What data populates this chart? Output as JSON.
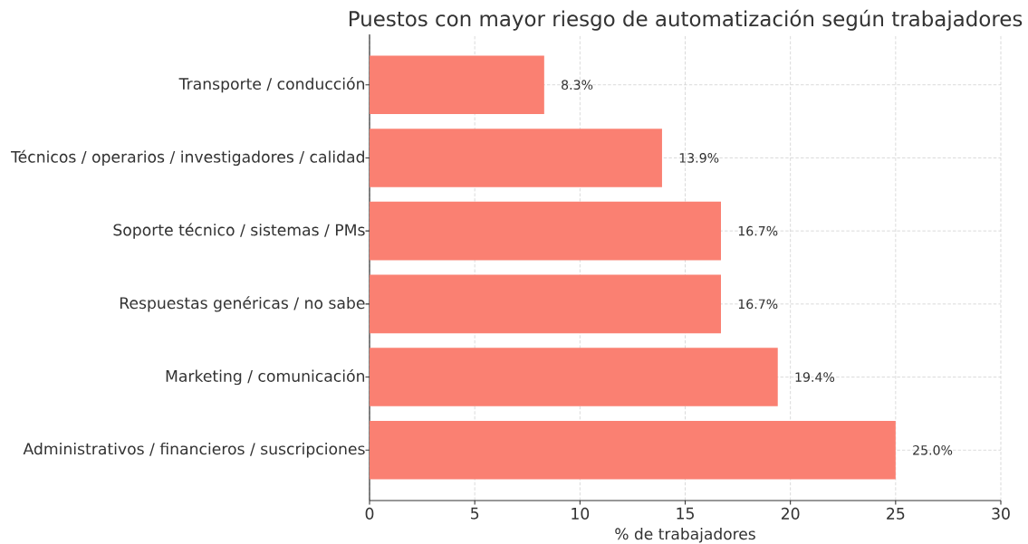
{
  "chart_data": {
    "type": "bar",
    "orientation": "horizontal",
    "title": "Puestos con mayor riesgo de automatización según trabajadores",
    "xlabel": "% de trabajadores",
    "categories": [
      "Transporte / conducción",
      "Técnicos / operarios / investigadores / calidad",
      "Soporte técnico / sistemas / PMs",
      "Respuestas genéricas / no sabe",
      "Marketing / comunicación",
      "Administrativos / financieros / suscripciones"
    ],
    "values": [
      8.3,
      13.9,
      16.7,
      16.7,
      19.4,
      25.0
    ],
    "value_labels": [
      "8.3%",
      "13.9%",
      "16.7%",
      "16.7%",
      "19.4%",
      "25.0%"
    ],
    "color": "#fa8072",
    "xlim": [
      0,
      30
    ],
    "xticks": [
      0,
      5,
      10,
      15,
      20,
      25,
      30
    ],
    "grid": true
  }
}
